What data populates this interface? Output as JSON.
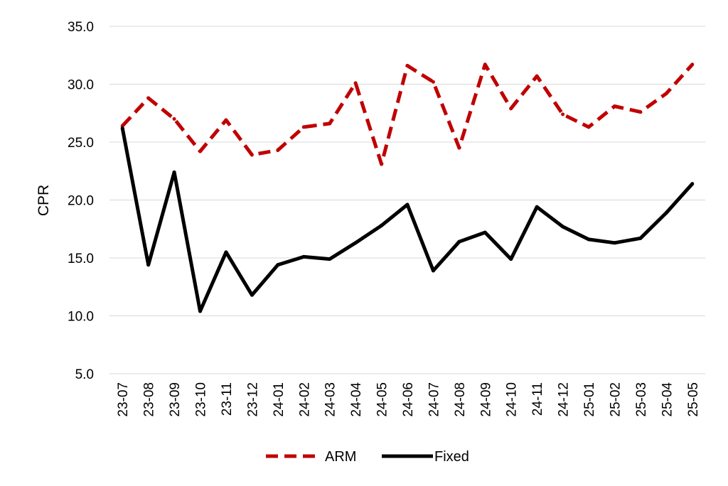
{
  "chart_data": {
    "type": "line",
    "title": "",
    "xlabel": "",
    "ylabel": "CPR",
    "ylim": [
      5.0,
      35.0
    ],
    "yticks": [
      "5.0",
      "10.0",
      "15.0",
      "20.0",
      "25.0",
      "30.0",
      "35.0"
    ],
    "grid": true,
    "legend_position": "bottom",
    "categories": [
      "23-07",
      "23-08",
      "23-09",
      "23-10",
      "23-11",
      "23-12",
      "24-01",
      "24-02",
      "24-03",
      "24-04",
      "24-05",
      "24-06",
      "24-07",
      "24-08",
      "24-09",
      "24-10",
      "24-11",
      "24-12",
      "25-01",
      "25-02",
      "25-03",
      "25-04",
      "25-05"
    ],
    "series": [
      {
        "name": "ARM",
        "color": "#c00000",
        "dashed": true,
        "values": [
          26.4,
          28.8,
          27.0,
          24.2,
          26.9,
          23.9,
          24.3,
          26.3,
          26.6,
          30.1,
          23.1,
          31.6,
          30.2,
          24.5,
          31.7,
          27.9,
          30.7,
          27.4,
          26.3,
          28.1,
          27.6,
          29.2,
          31.7
        ]
      },
      {
        "name": "Fixed",
        "color": "#000000",
        "dashed": false,
        "values": [
          26.2,
          14.4,
          22.4,
          10.4,
          15.5,
          11.8,
          14.4,
          15.1,
          14.9,
          16.3,
          17.8,
          19.6,
          13.9,
          16.4,
          17.2,
          14.9,
          19.4,
          17.7,
          16.6,
          16.3,
          16.7,
          18.9,
          21.4
        ]
      }
    ]
  }
}
